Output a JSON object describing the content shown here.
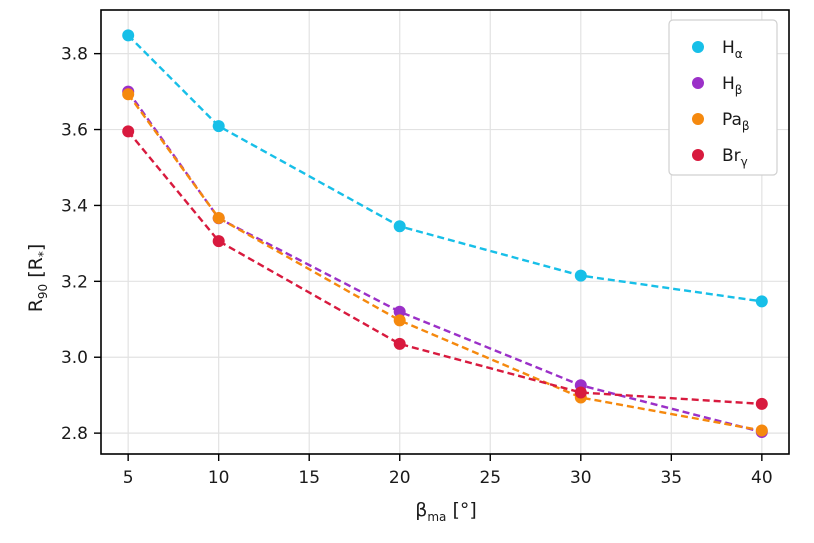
{
  "chart_data": {
    "type": "scatter",
    "xlabel": {
      "main": "β",
      "sub": "ma",
      "unit": " [°]"
    },
    "ylabel": {
      "main": "R",
      "sub": "90",
      "unit": " [R",
      "unit_sub": "*",
      "unit_close": "]"
    },
    "xlim": [
      3.5,
      41.5
    ],
    "ylim": [
      2.745,
      3.915
    ],
    "xticks": [
      5,
      10,
      15,
      20,
      25,
      30,
      35,
      40
    ],
    "yticks": [
      2.8,
      3.0,
      3.2,
      3.4,
      3.6,
      3.8
    ],
    "ytick_labels": [
      "2.8",
      "3.0",
      "3.2",
      "3.4",
      "3.6",
      "3.8"
    ],
    "grid": true,
    "legend_position": "top-right",
    "x": [
      5,
      10,
      20,
      30,
      40
    ],
    "series": [
      {
        "name_main": "H",
        "name_sub": "α",
        "color": "#17bfe8",
        "values": [
          3.848,
          3.609,
          3.345,
          3.215,
          3.147
        ]
      },
      {
        "name_main": "H",
        "name_sub": "β",
        "color": "#9b30c8",
        "values": [
          3.7,
          3.366,
          3.12,
          2.926,
          2.803
        ]
      },
      {
        "name_main": "Pa",
        "name_sub": "β",
        "color": "#f5890e",
        "values": [
          3.693,
          3.367,
          3.097,
          2.894,
          2.807
        ]
      },
      {
        "name_main": "Br",
        "name_sub": "γ",
        "color": "#d81a3e",
        "values": [
          3.595,
          3.306,
          3.035,
          2.907,
          2.877
        ]
      }
    ]
  }
}
